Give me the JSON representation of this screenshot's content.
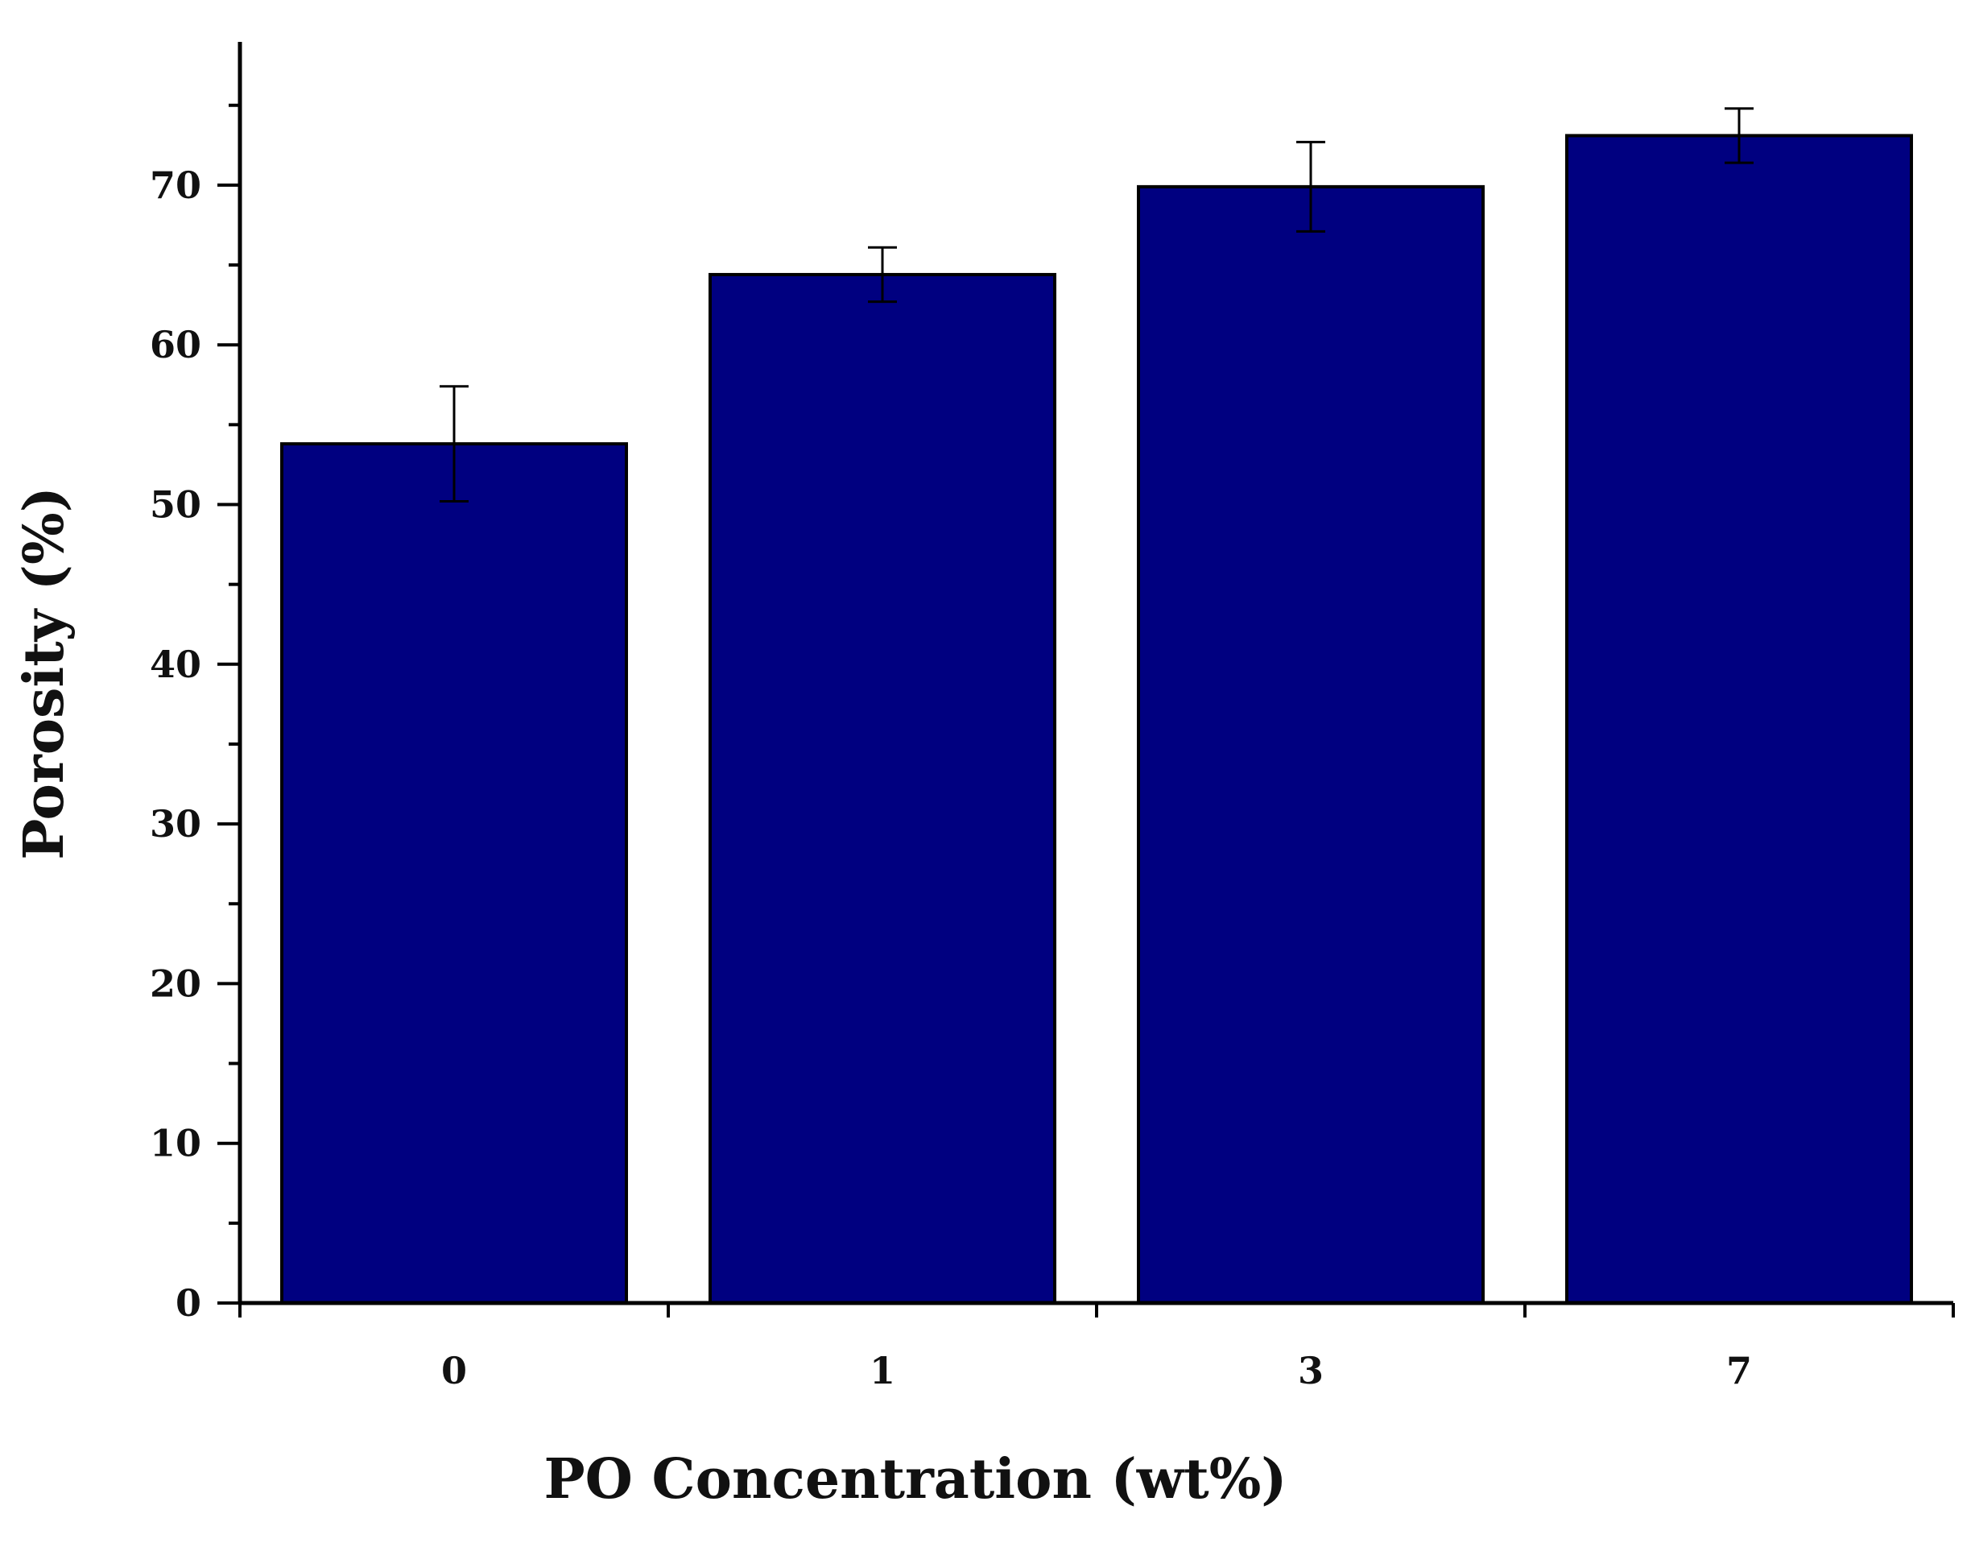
{
  "chart_data": {
    "type": "bar",
    "title": "",
    "xlabel": "PO Concentration (wt%)",
    "ylabel": "Porosity (%)",
    "categories": [
      "0",
      "1",
      "3",
      "7"
    ],
    "values": [
      53.8,
      64.4,
      69.9,
      73.1
    ],
    "errors": [
      3.6,
      1.7,
      2.8,
      1.7
    ],
    "ylim": [
      0,
      79
    ],
    "yticks": [
      0,
      10,
      20,
      30,
      40,
      50,
      60,
      70
    ],
    "ytick_labels": [
      "0",
      "10",
      "20",
      "30",
      "40",
      "50",
      "60",
      "70"
    ],
    "y_minor_step": 5,
    "grid": false,
    "legend": "none",
    "colors": {
      "bar_fill": "#000080",
      "bar_edge": "#000000",
      "axis": "#000000",
      "error_bar": "#000000"
    }
  }
}
